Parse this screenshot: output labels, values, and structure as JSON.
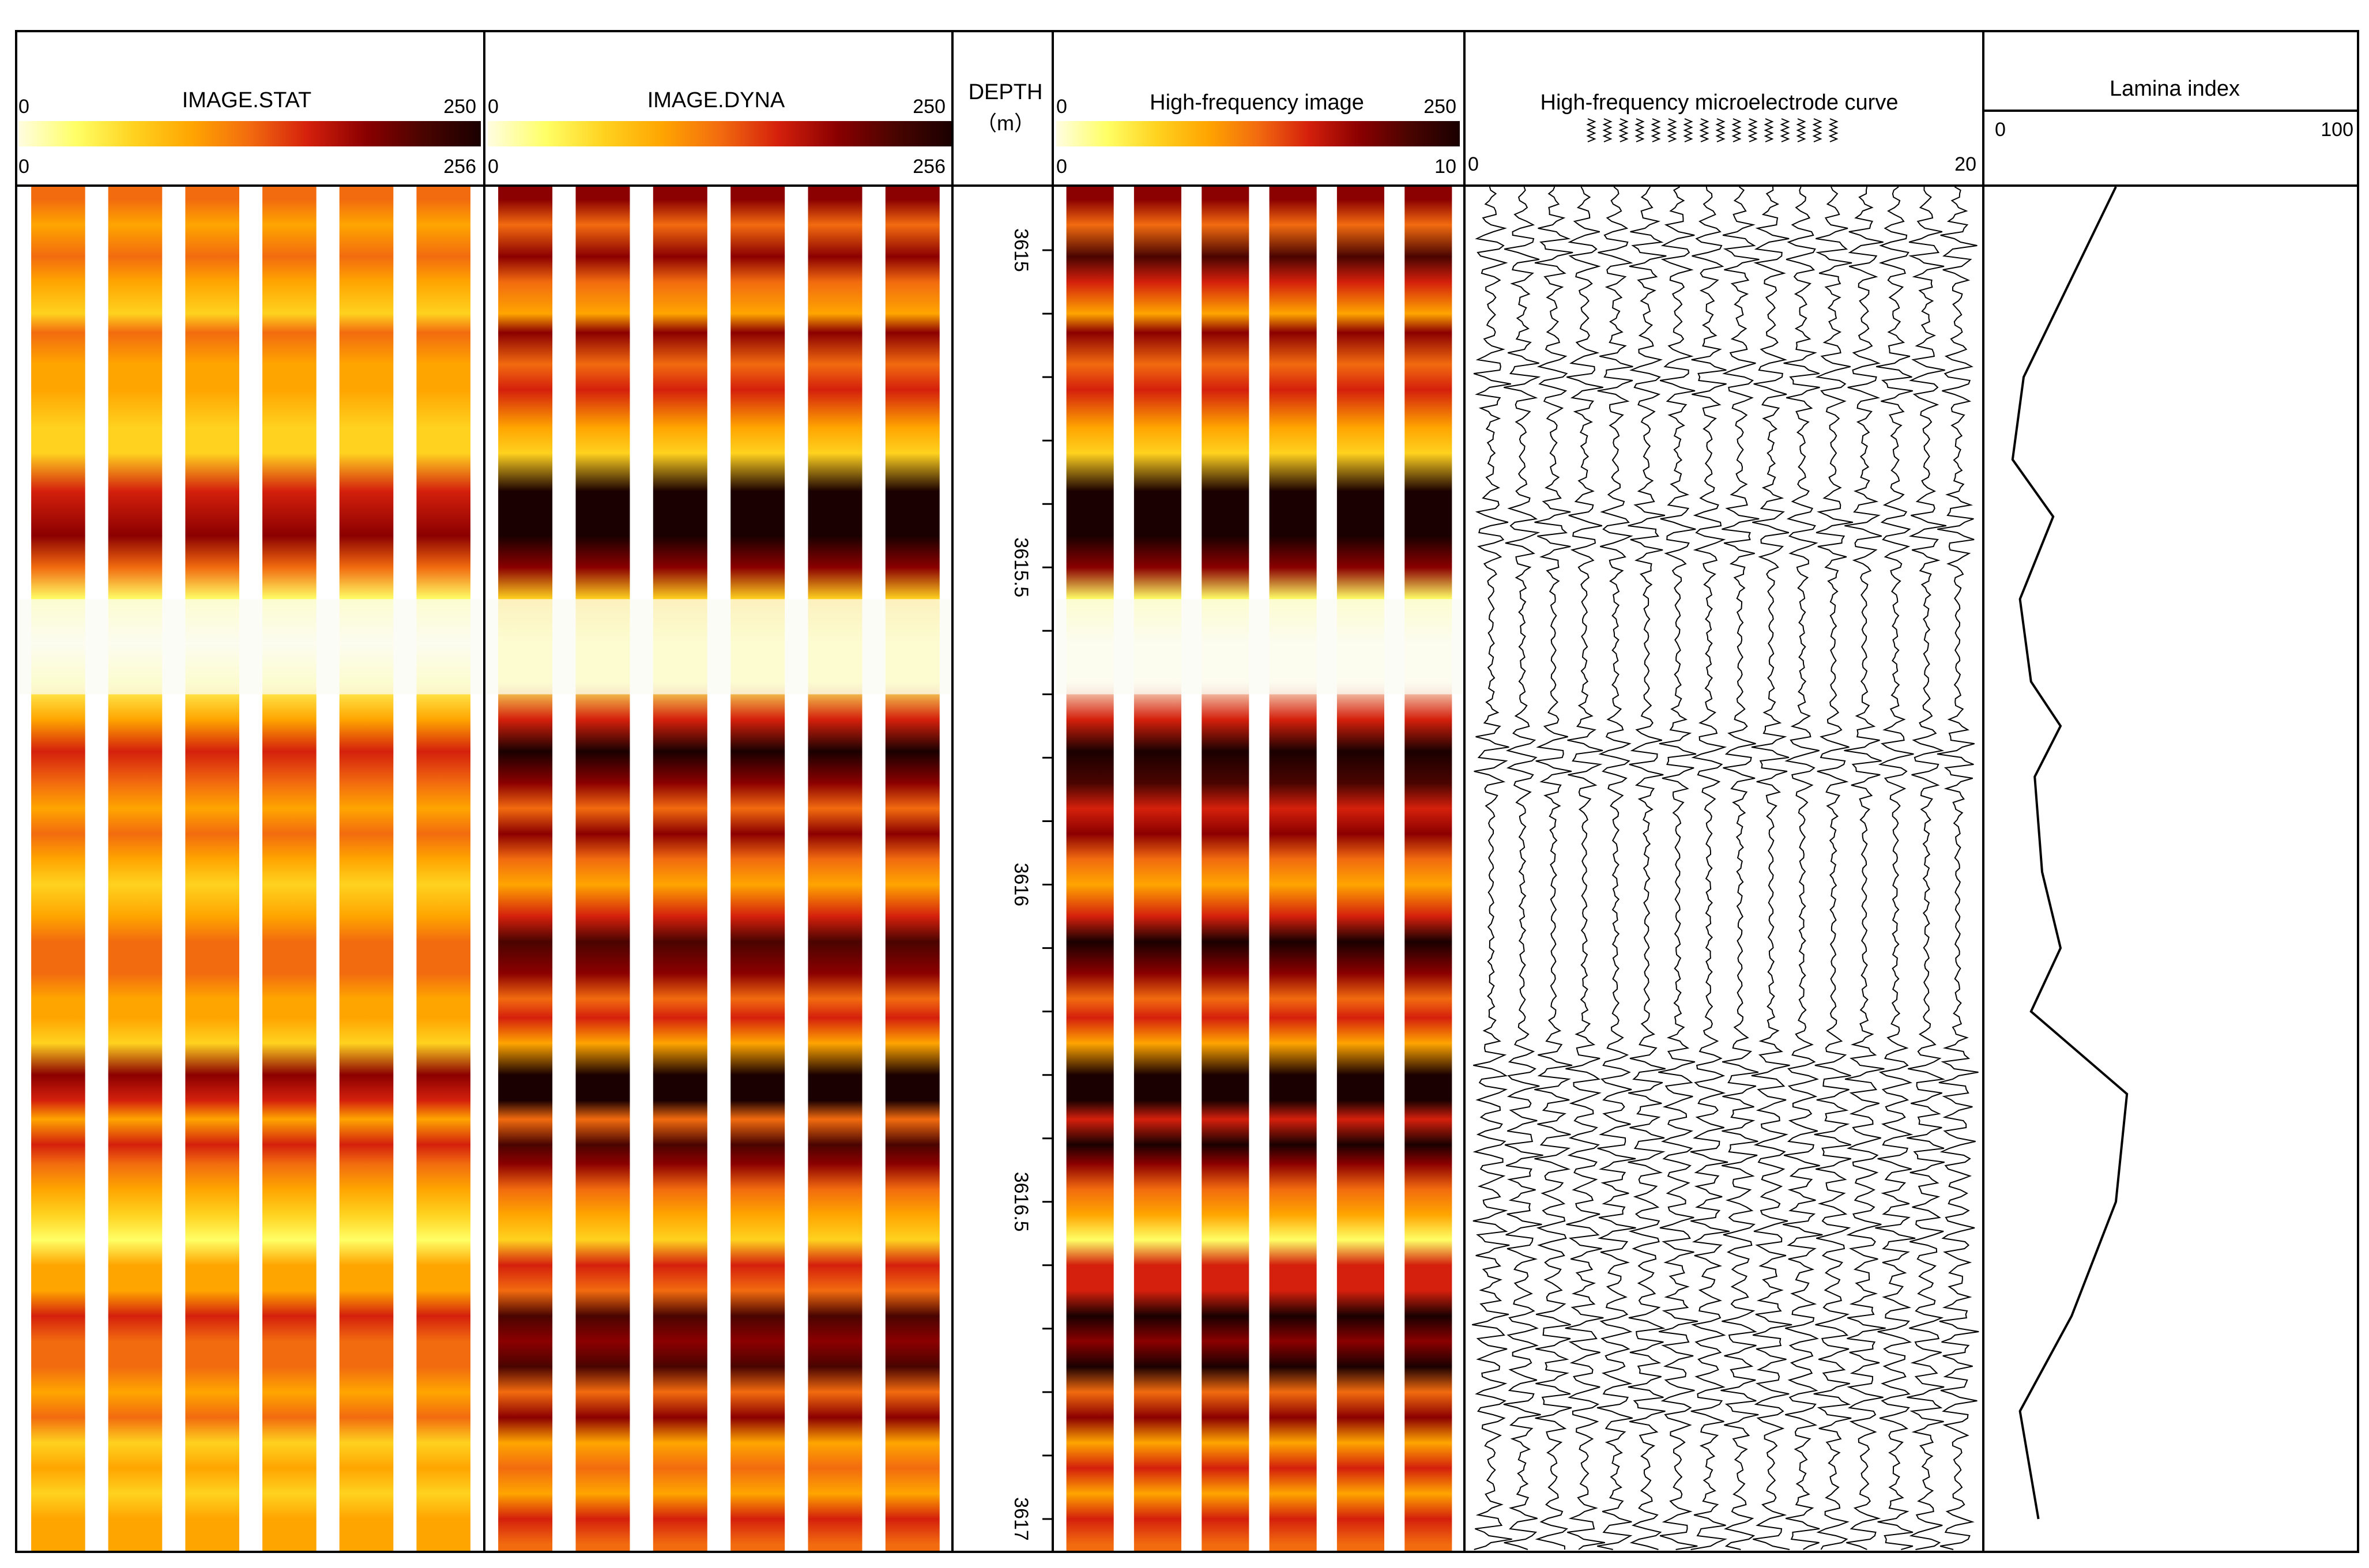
{
  "tracks": {
    "stat": {
      "title": "IMAGE.STAT",
      "scale_top_min": "0",
      "scale_top_max": "250",
      "scale_bottom_min": "0",
      "scale_bottom_max": "256"
    },
    "dyna": {
      "title": "IMAGE.DYNA",
      "scale_top_min": "0",
      "scale_top_max": "250",
      "scale_bottom_min": "0",
      "scale_bottom_max": "256"
    },
    "depth": {
      "title": "DEPTH",
      "unit": "（m）"
    },
    "hf_image": {
      "title": "High-frequency image",
      "scale_top_min": "0",
      "scale_top_max": "250",
      "scale_bottom_min": "0",
      "scale_bottom_max": "10"
    },
    "hf_curve": {
      "title": "High-frequency microelectrode curve",
      "scale_min": "0",
      "scale_max": "20"
    },
    "lamina": {
      "title": "Lamina index",
      "scale_min": "0",
      "scale_max": "100"
    }
  },
  "colors": {
    "palette": [
      "#fffde0",
      "#ffff66",
      "#ffd21f",
      "#ffa500",
      "#f26b0f",
      "#d4200c",
      "#8b0000",
      "#4a0400",
      "#1a0000"
    ],
    "gap": "#ffffff",
    "line": "#000000"
  },
  "chart_data": {
    "type": "line",
    "depth_range": [
      3614.9,
      3617.05
    ],
    "depth_ticks": [
      "3615",
      "3615.5",
      "3616",
      "3616.5",
      "3617"
    ],
    "depth_tick_values": [
      3615,
      3615.5,
      3616,
      3616.5,
      3617
    ],
    "image_pad_count": 6,
    "bands": [
      {
        "d": 3614.92,
        "v": 0.55
      },
      {
        "d": 3614.96,
        "v": 0.4
      },
      {
        "d": 3615.01,
        "v": 0.62
      },
      {
        "d": 3615.05,
        "v": 0.45
      },
      {
        "d": 3615.1,
        "v": 0.35
      },
      {
        "d": 3615.13,
        "v": 0.55
      },
      {
        "d": 3615.18,
        "v": 0.4
      },
      {
        "d": 3615.22,
        "v": 0.5
      },
      {
        "d": 3615.28,
        "v": 0.3
      },
      {
        "d": 3615.32,
        "v": 0.25
      },
      {
        "d": 3615.38,
        "v": 0.75
      },
      {
        "d": 3615.45,
        "v": 0.85
      },
      {
        "d": 3615.5,
        "v": 0.55
      },
      {
        "d": 3615.55,
        "v": 0.2
      },
      {
        "d": 3615.62,
        "v": 0.1
      },
      {
        "d": 3615.68,
        "v": 0.15
      },
      {
        "d": 3615.74,
        "v": 0.5
      },
      {
        "d": 3615.79,
        "v": 0.78
      },
      {
        "d": 3615.84,
        "v": 0.6
      },
      {
        "d": 3615.88,
        "v": 0.45
      },
      {
        "d": 3615.92,
        "v": 0.55
      },
      {
        "d": 3615.96,
        "v": 0.4
      },
      {
        "d": 3616.0,
        "v": 0.35
      },
      {
        "d": 3616.05,
        "v": 0.5
      },
      {
        "d": 3616.09,
        "v": 0.65
      },
      {
        "d": 3616.14,
        "v": 0.55
      },
      {
        "d": 3616.18,
        "v": 0.4
      },
      {
        "d": 3616.21,
        "v": 0.5
      },
      {
        "d": 3616.25,
        "v": 0.3
      },
      {
        "d": 3616.3,
        "v": 0.8
      },
      {
        "d": 3616.34,
        "v": 0.75
      },
      {
        "d": 3616.37,
        "v": 0.45
      },
      {
        "d": 3616.41,
        "v": 0.7
      },
      {
        "d": 3616.44,
        "v": 0.55
      },
      {
        "d": 3616.48,
        "v": 0.4
      },
      {
        "d": 3616.52,
        "v": 0.3
      },
      {
        "d": 3616.56,
        "v": 0.2
      },
      {
        "d": 3616.6,
        "v": 0.5
      },
      {
        "d": 3616.64,
        "v": 0.45
      },
      {
        "d": 3616.68,
        "v": 0.7
      },
      {
        "d": 3616.72,
        "v": 0.55
      },
      {
        "d": 3616.76,
        "v": 0.65
      },
      {
        "d": 3616.8,
        "v": 0.4
      },
      {
        "d": 3616.84,
        "v": 0.55
      },
      {
        "d": 3616.88,
        "v": 0.3
      },
      {
        "d": 3616.92,
        "v": 0.45
      },
      {
        "d": 3616.96,
        "v": 0.35
      },
      {
        "d": 3617.0,
        "v": 0.5
      },
      {
        "d": 3617.04,
        "v": 0.4
      }
    ],
    "lamina_index": {
      "name": "Lamina index",
      "xlim": [
        0,
        100
      ],
      "depth": [
        3614.9,
        3615.08,
        3615.2,
        3615.33,
        3615.42,
        3615.55,
        3615.68,
        3615.75,
        3615.83,
        3615.98,
        3616.1,
        3616.2,
        3616.33,
        3616.5,
        3616.68,
        3616.83,
        3617.0
      ],
      "values": [
        35,
        20,
        10,
        7,
        18,
        9,
        12,
        20,
        13,
        15,
        20,
        12,
        38,
        35,
        23,
        9,
        14
      ]
    },
    "microelectrode": {
      "xlim": [
        0,
        20
      ],
      "curves": 16,
      "high_activity_depths": [
        3615.0,
        3615.2,
        3615.44,
        3615.8,
        3616.3,
        3616.42,
        3616.55,
        3616.7,
        3616.82,
        3617.03
      ]
    }
  }
}
